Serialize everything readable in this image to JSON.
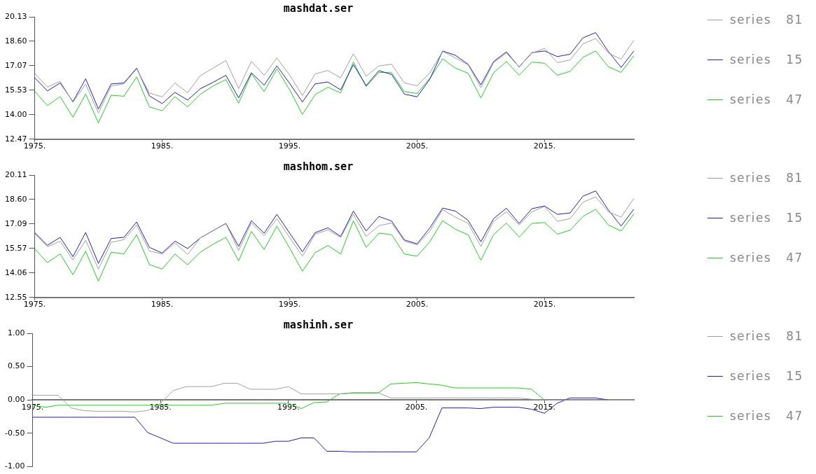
{
  "chart_data": [
    {
      "type": "line",
      "title": "mashdat.ser",
      "legend": "right",
      "grid": false,
      "marker": "none",
      "x": [
        1975,
        1976,
        1977,
        1978,
        1979,
        1980,
        1981,
        1982,
        1983,
        1984,
        1985,
        1986,
        1987,
        1988,
        1989,
        1990,
        1991,
        1992,
        1993,
        1994,
        1995,
        1996,
        1997,
        1998,
        1999,
        2000,
        2001,
        2002,
        2003,
        2004,
        2005,
        2006,
        2007,
        2008,
        2009,
        2010,
        2011,
        2012,
        2013,
        2014,
        2015,
        2016,
        2017,
        2018,
        2019,
        2020,
        2021,
        2022
      ],
      "xlim": [
        1975,
        2022
      ],
      "xticks": [
        {
          "value": 1975,
          "label": "1975."
        },
        {
          "value": 1985,
          "label": "1985."
        },
        {
          "value": 1995,
          "label": "1995."
        },
        {
          "value": 2005,
          "label": "2005."
        },
        {
          "value": 2015,
          "label": "2015."
        }
      ],
      "ylim": [
        12.47,
        20.13
      ],
      "yticks": [
        {
          "value": 12.47,
          "label": "12.47"
        },
        {
          "value": 14.0,
          "label": "14.00"
        },
        {
          "value": 15.53,
          "label": "15.53"
        },
        {
          "value": 17.07,
          "label": "17.07"
        },
        {
          "value": 18.6,
          "label": "18.60"
        },
        {
          "value": 20.13,
          "label": "20.13"
        }
      ],
      "series": [
        {
          "name": "series 81",
          "color": "#a0a0a0",
          "values": [
            16.6,
            15.73,
            16.09,
            14.78,
            15.92,
            14.11,
            15.8,
            15.93,
            16.87,
            15.36,
            15.12,
            15.99,
            15.38,
            16.45,
            16.92,
            17.39,
            15.64,
            17.35,
            16.47,
            17.55,
            16.49,
            15.2,
            16.56,
            16.77,
            16.31,
            17.82,
            16.41,
            17.06,
            17.16,
            15.99,
            15.81,
            16.63,
            17.96,
            17.56,
            17.12,
            15.69,
            17.27,
            17.86,
            17.0,
            17.86,
            18.15,
            17.26,
            17.43,
            18.43,
            18.77,
            17.86,
            17.48,
            18.67
          ]
        },
        {
          "name": "series 15",
          "color": "#2020c0",
          "values": [
            16.32,
            15.49,
            15.99,
            14.82,
            16.25,
            14.36,
            15.93,
            15.99,
            16.92,
            15.18,
            14.7,
            15.4,
            14.92,
            15.63,
            16.03,
            16.47,
            15.05,
            16.63,
            15.85,
            17.06,
            15.96,
            14.8,
            15.93,
            16.05,
            15.56,
            17.14,
            15.82,
            16.76,
            16.52,
            15.29,
            15.12,
            16.23,
            17.99,
            17.72,
            17.16,
            15.87,
            17.33,
            17.94,
            16.99,
            17.89,
            17.99,
            17.64,
            17.79,
            18.81,
            19.14,
            17.96,
            16.96,
            17.99
          ]
        },
        {
          "name": "series 47",
          "color": "#20d020",
          "values": [
            15.47,
            14.58,
            15.13,
            13.85,
            15.29,
            13.49,
            15.22,
            15.16,
            16.36,
            14.49,
            14.25,
            15.13,
            14.49,
            15.29,
            15.8,
            16.2,
            14.73,
            16.56,
            15.45,
            16.87,
            15.56,
            14.02,
            15.26,
            15.72,
            15.37,
            17.3,
            15.76,
            16.65,
            16.63,
            15.45,
            15.33,
            16.29,
            17.5,
            16.92,
            16.6,
            15.05,
            16.63,
            17.33,
            16.47,
            17.3,
            17.22,
            16.47,
            16.72,
            17.59,
            17.99,
            17.0,
            16.65,
            17.7
          ]
        }
      ]
    },
    {
      "type": "line",
      "title": "mashhom.ser",
      "legend": "right",
      "grid": false,
      "marker": "none",
      "x": [
        1975,
        1976,
        1977,
        1978,
        1979,
        1980,
        1981,
        1982,
        1983,
        1984,
        1985,
        1986,
        1987,
        1988,
        1989,
        1990,
        1991,
        1992,
        1993,
        1994,
        1995,
        1996,
        1997,
        1998,
        1999,
        2000,
        2001,
        2002,
        2003,
        2004,
        2005,
        2006,
        2007,
        2008,
        2009,
        2010,
        2011,
        2012,
        2013,
        2014,
        2015,
        2016,
        2017,
        2018,
        2019,
        2020,
        2021,
        2022
      ],
      "xlim": [
        1975,
        2022
      ],
      "xticks": [
        {
          "value": 1975,
          "label": "1975."
        },
        {
          "value": 1985,
          "label": "1985."
        },
        {
          "value": 1995,
          "label": "1995."
        },
        {
          "value": 2005,
          "label": "2005."
        },
        {
          "value": 2015,
          "label": "2015."
        }
      ],
      "ylim": [
        12.55,
        20.11
      ],
      "yticks": [
        {
          "value": 12.55,
          "label": "12.55"
        },
        {
          "value": 14.06,
          "label": "14.06"
        },
        {
          "value": 15.57,
          "label": "15.57"
        },
        {
          "value": 17.09,
          "label": "17.09"
        },
        {
          "value": 18.6,
          "label": "18.60"
        },
        {
          "value": 20.11,
          "label": "20.11"
        }
      ],
      "series": [
        {
          "name": "series 81",
          "color": "#a0a0a0",
          "values": [
            16.49,
            15.68,
            16.02,
            14.87,
            16.08,
            14.3,
            15.95,
            16.12,
            17.02,
            15.42,
            15.23,
            15.92,
            15.2,
            16.23,
            16.68,
            17.1,
            15.46,
            17.15,
            16.36,
            17.42,
            16.25,
            15.1,
            16.46,
            16.72,
            16.26,
            17.68,
            16.32,
            16.98,
            17.15,
            16.02,
            15.8,
            16.65,
            17.97,
            17.51,
            17.12,
            15.7,
            17.25,
            17.84,
            17.02,
            17.84,
            18.17,
            17.25,
            17.42,
            18.43,
            18.76,
            17.84,
            17.51,
            18.67
          ]
        },
        {
          "name": "series 15",
          "color": "#2020c0",
          "values": [
            16.56,
            15.77,
            16.26,
            15.07,
            16.56,
            14.65,
            16.19,
            16.26,
            17.21,
            15.64,
            15.29,
            16.03,
            15.57,
            16.23,
            16.68,
            17.12,
            15.7,
            17.29,
            16.52,
            17.68,
            16.52,
            15.37,
            16.55,
            16.85,
            16.32,
            17.88,
            16.65,
            17.55,
            17.27,
            16.1,
            15.86,
            16.85,
            18.07,
            17.88,
            17.31,
            15.99,
            17.42,
            18.06,
            17.12,
            18.03,
            18.2,
            17.68,
            17.77,
            18.8,
            19.13,
            17.95,
            16.96,
            18.01
          ]
        },
        {
          "name": "series 47",
          "color": "#20d020",
          "values": [
            15.56,
            14.7,
            15.24,
            13.95,
            15.4,
            13.55,
            15.34,
            15.24,
            16.43,
            14.58,
            14.3,
            15.23,
            14.57,
            15.34,
            15.84,
            16.26,
            14.81,
            16.63,
            15.51,
            16.96,
            15.6,
            14.17,
            15.31,
            15.76,
            15.23,
            17.29,
            15.64,
            16.52,
            16.43,
            15.23,
            15.1,
            15.99,
            17.29,
            16.76,
            16.42,
            14.84,
            16.43,
            17.14,
            16.28,
            17.12,
            17.18,
            16.46,
            16.7,
            17.55,
            18.0,
            17.02,
            16.65,
            17.71
          ]
        }
      ]
    },
    {
      "type": "line",
      "title": "mashinh.ser",
      "legend": "right",
      "grid": false,
      "marker": "none",
      "x": [
        1975,
        1976,
        1977,
        1978,
        1979,
        1980,
        1981,
        1982,
        1983,
        1984,
        1985,
        1986,
        1987,
        1988,
        1989,
        1990,
        1991,
        1992,
        1993,
        1994,
        1995,
        1996,
        1997,
        1998,
        1999,
        2000,
        2001,
        2002,
        2003,
        2004,
        2005,
        2006,
        2007,
        2008,
        2009,
        2010,
        2011,
        2012,
        2013,
        2014,
        2015,
        2016,
        2017,
        2018,
        2019,
        2020,
        2021,
        2022
      ],
      "xlim": [
        1975,
        2022
      ],
      "xticks": [
        {
          "value": 1975,
          "label": "1975."
        },
        {
          "value": 1985,
          "label": "1985."
        },
        {
          "value": 1995,
          "label": "1995."
        },
        {
          "value": 2005,
          "label": "2005."
        },
        {
          "value": 2015,
          "label": "2015."
        }
      ],
      "ylim": [
        -1,
        1
      ],
      "yticks": [
        {
          "value": -1,
          "label": "-1.00"
        },
        {
          "value": -0.5,
          "label": "-0.50"
        },
        {
          "value": 0,
          "label": "0.00"
        },
        {
          "value": 0.5,
          "label": "0.50"
        },
        {
          "value": 1,
          "label": "1.00"
        }
      ],
      "series": [
        {
          "name": "series 81",
          "color": "#a0a0a0",
          "values": [
            0.07,
            0.07,
            0.07,
            -0.12,
            -0.16,
            -0.17,
            -0.17,
            -0.17,
            -0.18,
            -0.16,
            -0.05,
            0.14,
            0.2,
            0.2,
            0.2,
            0.25,
            0.25,
            0.16,
            0.16,
            0.16,
            0.2,
            0.09,
            0.09,
            0.09,
            0.09,
            0.11,
            0.11,
            0.11,
            0.03,
            0.03,
            0.03,
            0.03,
            0.03,
            0.03,
            0.03,
            0.03,
            0.03,
            0.03,
            0.03,
            0.01,
            0,
            0,
            0,
            0,
            0,
            0,
            0,
            0
          ]
        },
        {
          "name": "series 15",
          "color": "#2020c0",
          "values": [
            -0.26,
            -0.26,
            -0.26,
            -0.26,
            -0.26,
            -0.26,
            -0.26,
            -0.26,
            -0.26,
            -0.49,
            -0.57,
            -0.65,
            -0.65,
            -0.65,
            -0.65,
            -0.65,
            -0.65,
            -0.65,
            -0.65,
            -0.62,
            -0.62,
            -0.57,
            -0.57,
            -0.77,
            -0.77,
            -0.78,
            -0.78,
            -0.78,
            -0.78,
            -0.78,
            -0.78,
            -0.57,
            -0.12,
            -0.12,
            -0.12,
            -0.13,
            -0.11,
            -0.11,
            -0.11,
            -0.14,
            -0.2,
            -0.05,
            0.03,
            0.03,
            0.03,
            0,
            null,
            null
          ]
        },
        {
          "name": "series 47",
          "color": "#20d020",
          "values": [
            -0.08,
            -0.11,
            -0.08,
            -0.08,
            -0.08,
            -0.08,
            -0.08,
            -0.08,
            -0.08,
            -0.08,
            -0.08,
            -0.08,
            -0.08,
            -0.08,
            -0.08,
            -0.05,
            -0.05,
            -0.05,
            -0.05,
            -0.05,
            -0.05,
            -0.13,
            -0.04,
            -0.03,
            0.09,
            0.1,
            0.1,
            0.1,
            0.24,
            0.25,
            0.26,
            0.24,
            0.22,
            0.18,
            0.18,
            0.18,
            0.18,
            0.18,
            0.18,
            0.16,
            0,
            null,
            null,
            null,
            null,
            null,
            null,
            null
          ]
        }
      ]
    }
  ]
}
